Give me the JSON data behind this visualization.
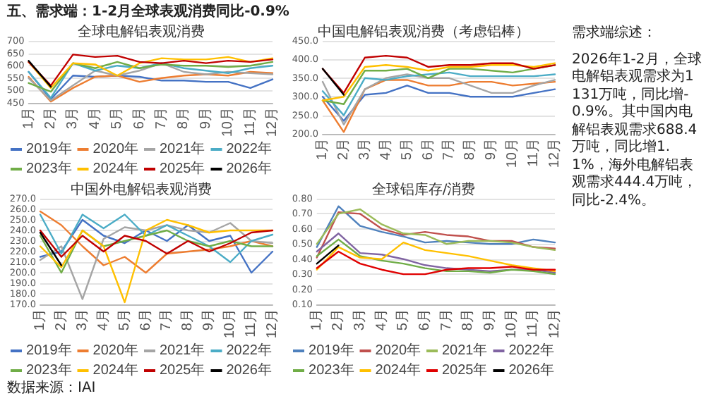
{
  "chart_data": [
    {
      "type": "other",
      "title": "五、需求端：1-2月全球表观消费同比-0.9%",
      "annotations": [
        "数据来源：IAI"
      ]
    },
    {
      "type": "line",
      "title": "全球电解铝表观消费",
      "categories": [
        "1月",
        "2月",
        "3月",
        "4月",
        "5月",
        "6月",
        "7月",
        "8月",
        "9月",
        "10月",
        "11月",
        "12月"
      ],
      "ylim": [
        450,
        700
      ],
      "yticks": [
        450,
        500,
        550,
        600,
        650,
        700
      ],
      "grid": "y",
      "legend": "bottom",
      "series": [
        {
          "name": "2019年",
          "color": "#4472c4",
          "values": [
            575,
            465,
            560,
            555,
            560,
            555,
            540,
            540,
            535,
            535,
            510,
            545
          ]
        },
        {
          "name": "2020年",
          "color": "#ed7d31",
          "values": [
            555,
            455,
            510,
            555,
            560,
            535,
            550,
            560,
            565,
            560,
            575,
            570
          ]
        },
        {
          "name": "2021年",
          "color": "#a5a5a5",
          "values": [
            550,
            460,
            520,
            580,
            560,
            580,
            610,
            575,
            565,
            575,
            570,
            565
          ]
        },
        {
          "name": "2022年",
          "color": "#4bacc6",
          "values": [
            575,
            470,
            610,
            580,
            600,
            590,
            610,
            590,
            580,
            570,
            590,
            600
          ]
        },
        {
          "name": "2023年",
          "color": "#70ad47",
          "values": [
            530,
            495,
            610,
            590,
            615,
            590,
            605,
            600,
            600,
            595,
            600,
            615
          ]
        },
        {
          "name": "2024年",
          "color": "#ffc000",
          "values": [
            615,
            510,
            610,
            605,
            560,
            610,
            630,
            625,
            625,
            635,
            615,
            630
          ]
        },
        {
          "name": "2025年",
          "color": "#c00000",
          "values": [
            615,
            520,
            645,
            635,
            640,
            615,
            610,
            620,
            610,
            620,
            615,
            625
          ]
        },
        {
          "name": "2026年",
          "color": "#000000",
          "values": [
            620,
            515,
            null,
            null,
            null,
            null,
            null,
            null,
            null,
            null,
            null,
            null
          ]
        }
      ]
    },
    {
      "type": "line",
      "title": "中国电解铝表观消费（考虑铝棒）",
      "categories": [
        "1月",
        "2月",
        "3月",
        "4月",
        "5月",
        "6月",
        "7月",
        "8月",
        "9月",
        "10月",
        "11月",
        "12月"
      ],
      "ylim": [
        200,
        450
      ],
      "yticks": [
        {
          "value": 200,
          "label": "200.0"
        },
        {
          "value": 250,
          "label": "250.0"
        },
        {
          "value": 300,
          "label": "300.0"
        },
        {
          "value": 350,
          "label": "350.0"
        },
        {
          "value": 400,
          "label": "400.0"
        },
        {
          "value": 450,
          "label": "450.0"
        }
      ],
      "grid": "y",
      "series": [
        {
          "color": "#4472c4",
          "values": [
            300,
            235,
            305,
            310,
            330,
            310,
            310,
            300,
            300,
            300,
            310,
            320
          ]
        },
        {
          "color": "#ed7d31",
          "values": [
            290,
            205,
            320,
            345,
            345,
            330,
            330,
            340,
            340,
            330,
            335,
            340
          ]
        },
        {
          "color": "#a5a5a5",
          "values": [
            340,
            225,
            320,
            350,
            360,
            350,
            350,
            330,
            310,
            310,
            330,
            345
          ]
        },
        {
          "color": "#4bacc6",
          "values": [
            315,
            250,
            350,
            345,
            355,
            360,
            365,
            355,
            355,
            355,
            355,
            360
          ]
        },
        {
          "color": "#70ad47",
          "values": [
            290,
            280,
            370,
            370,
            375,
            350,
            375,
            375,
            370,
            365,
            375,
            385
          ]
        },
        {
          "color": "#ffc000",
          "values": [
            290,
            300,
            380,
            385,
            380,
            370,
            380,
            380,
            385,
            385,
            380,
            390
          ]
        },
        {
          "color": "#c00000",
          "values": [
            375,
            310,
            405,
            410,
            405,
            380,
            385,
            385,
            390,
            390,
            375,
            385
          ]
        },
        {
          "color": "#000000",
          "values": [
            375,
            305,
            null,
            null,
            null,
            null,
            null,
            null,
            null,
            null,
            null,
            null
          ]
        }
      ]
    },
    {
      "type": "other",
      "title": "需求端综述：",
      "annotations": [
        "2026年1-2月，全球电解铝表观需求为1131万吨，同比增-0.9%。其中国内电解铝表观需求688.4万吨，同比增1.1%，海外电解铝表观需求444.4万吨，同比-2.4%。"
      ]
    },
    {
      "type": "line",
      "title": "中国外电解铝表观消费",
      "categories": [
        "1月",
        "2月",
        "3月",
        "4月",
        "5月",
        "6月",
        "7月",
        "8月",
        "9月",
        "10月",
        "11月",
        "12月"
      ],
      "ylim": [
        170,
        270
      ],
      "yticks": [
        {
          "value": 170,
          "label": "170.0"
        },
        {
          "value": 180,
          "label": "180.0"
        },
        {
          "value": 190,
          "label": "190.0"
        },
        {
          "value": 200,
          "label": "200.0"
        },
        {
          "value": 210,
          "label": "210.0"
        },
        {
          "value": 220,
          "label": "220.0"
        },
        {
          "value": 230,
          "label": "230.0"
        },
        {
          "value": 240,
          "label": "240.0"
        },
        {
          "value": 250,
          "label": "250.0"
        },
        {
          "value": 260,
          "label": "260.0"
        },
        {
          "value": 270,
          "label": "270.0"
        }
      ],
      "grid": "y",
      "legend": "bottom",
      "series": [
        {
          "name": "2019年",
          "color": "#4472c4",
          "values": [
            215,
            220,
            250,
            235,
            228,
            240,
            230,
            245,
            230,
            235,
            200,
            220
          ]
        },
        {
          "name": "2020年",
          "color": "#ed7d31",
          "values": [
            258,
            245,
            225,
            207,
            215,
            200,
            218,
            220,
            222,
            225,
            230,
            225
          ]
        },
        {
          "name": "2021年",
          "color": "#a5a5a5",
          "values": [
            212,
            225,
            175,
            232,
            243,
            240,
            245,
            240,
            238,
            247,
            230,
            228
          ]
        },
        {
          "name": "2022年",
          "color": "#4bacc6",
          "values": [
            255,
            218,
            255,
            242,
            255,
            235,
            245,
            235,
            225,
            210,
            230,
            236
          ]
        },
        {
          "name": "2023年",
          "color": "#70ad47",
          "values": [
            235,
            200,
            240,
            225,
            230,
            235,
            240,
            230,
            225,
            230,
            225,
            225
          ]
        },
        {
          "name": "2024年",
          "color": "#ffc000",
          "values": [
            225,
            205,
            240,
            225,
            172,
            240,
            250,
            245,
            238,
            240,
            240,
            240
          ]
        },
        {
          "name": "2025年",
          "color": "#c00000",
          "values": [
            240,
            215,
            235,
            220,
            235,
            230,
            218,
            230,
            220,
            228,
            238,
            240
          ]
        },
        {
          "name": "2026年",
          "color": "#000000",
          "values": [
            238,
            207,
            null,
            null,
            null,
            null,
            null,
            null,
            null,
            null,
            null,
            null
          ]
        }
      ]
    },
    {
      "type": "line",
      "title": "全球铝库存/消费",
      "categories": [
        "1月",
        "2月",
        "3月",
        "4月",
        "5月",
        "6月",
        "7月",
        "8月",
        "9月",
        "10月",
        "11月",
        "12月"
      ],
      "ylim": [
        0.1,
        0.8
      ],
      "yticks": [
        {
          "value": 0.1,
          "label": "0.10"
        },
        {
          "value": 0.2,
          "label": "0.20"
        },
        {
          "value": 0.3,
          "label": "0.30"
        },
        {
          "value": 0.4,
          "label": "0.40"
        },
        {
          "value": 0.5,
          "label": "0.50"
        },
        {
          "value": 0.6,
          "label": "0.60"
        },
        {
          "value": 0.7,
          "label": "0.70"
        },
        {
          "value": 0.8,
          "label": "0.80"
        }
      ],
      "grid": "y",
      "legend": "bottom",
      "series": [
        {
          "name": "2019年",
          "color": "#4f81bd",
          "values": [
            0.48,
            0.75,
            0.62,
            0.58,
            0.55,
            0.51,
            0.52,
            0.51,
            0.5,
            0.5,
            0.53,
            0.51
          ]
        },
        {
          "name": "2020年",
          "color": "#c0504d",
          "values": [
            0.41,
            0.71,
            0.7,
            0.6,
            0.56,
            0.58,
            0.56,
            0.55,
            0.52,
            0.52,
            0.48,
            0.47
          ]
        },
        {
          "name": "2021年",
          "color": "#9bbb59",
          "values": [
            0.5,
            0.7,
            0.73,
            0.63,
            0.57,
            0.56,
            0.5,
            0.52,
            0.52,
            0.51,
            0.48,
            0.46
          ]
        },
        {
          "name": "2022年",
          "color": "#8064a2",
          "values": [
            0.45,
            0.57,
            0.44,
            0.43,
            0.4,
            0.36,
            0.34,
            0.33,
            0.32,
            0.33,
            0.33,
            0.31
          ]
        },
        {
          "name": "2023年",
          "color": "#70ad47",
          "values": [
            0.42,
            0.53,
            0.42,
            0.39,
            0.37,
            0.34,
            0.32,
            0.32,
            0.31,
            0.33,
            0.32,
            0.3
          ]
        },
        {
          "name": "2024年",
          "color": "#ffc000",
          "values": [
            0.33,
            0.48,
            0.41,
            0.4,
            0.51,
            0.46,
            0.44,
            0.42,
            0.39,
            0.36,
            0.34,
            0.32
          ]
        },
        {
          "name": "2025年",
          "color": "#e00000",
          "values": [
            0.34,
            0.45,
            0.37,
            0.33,
            0.3,
            0.3,
            0.33,
            0.34,
            0.34,
            0.35,
            0.33,
            0.33
          ]
        },
        {
          "name": "2026年",
          "color": "#000000",
          "values": [
            0.37,
            0.49,
            null,
            null,
            null,
            null,
            null,
            null,
            null,
            null,
            null,
            null
          ]
        }
      ]
    }
  ]
}
